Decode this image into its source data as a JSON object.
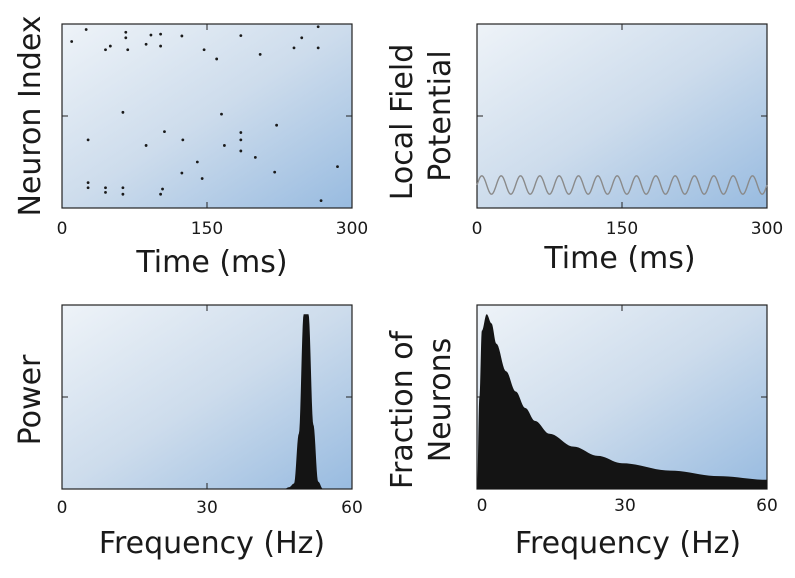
{
  "chart_data": [
    {
      "type": "scatter",
      "name": "raster",
      "title": "",
      "xlabel": "Time (ms)",
      "ylabel": "Neuron Index",
      "xlim": [
        0,
        300
      ],
      "ylim": [
        0,
        10
      ],
      "xticks": [
        0,
        150,
        300
      ],
      "xtick_labels": [
        "0",
        "150",
        "300"
      ],
      "x": [
        10,
        25,
        27,
        27,
        27,
        45,
        45,
        45,
        50,
        63,
        63,
        63,
        66,
        66,
        68,
        87,
        87,
        92,
        102,
        102,
        102,
        104,
        106,
        124,
        124,
        125,
        140,
        145,
        147,
        160,
        165,
        168,
        185,
        185,
        185,
        185,
        200,
        205,
        220,
        222,
        240,
        248,
        265,
        265,
        268,
        285
      ],
      "y": [
        9.05,
        9.7,
        1.1,
        1.38,
        3.7,
        0.85,
        1.1,
        8.6,
        8.8,
        0.75,
        1.1,
        5.2,
        9.25,
        9.55,
        8.6,
        8.9,
        3.4,
        9.4,
        8.8,
        9.45,
        0.75,
        1.03,
        4.15,
        9.35,
        1.9,
        3.7,
        2.5,
        1.6,
        8.6,
        8.1,
        5.1,
        3.4,
        3.7,
        9.37,
        4.1,
        3.1,
        2.75,
        8.35,
        1.95,
        4.5,
        8.7,
        9.25,
        8.7,
        9.85,
        0.4,
        2.25
      ],
      "orientation_note": "y measured from bottom"
    },
    {
      "type": "line",
      "name": "lfp",
      "title": "",
      "xlabel": "Time (ms)",
      "ylabel": "Local Field Potential",
      "ylabel_lines": [
        "Local Field",
        "Potential"
      ],
      "xlim": [
        0,
        300
      ],
      "ylim": [
        -1,
        1
      ],
      "xticks": [
        0,
        150,
        300
      ],
      "xtick_labels": [
        "0",
        "150",
        "300"
      ],
      "frequency_hz": 50,
      "amplitude": 0.1,
      "offset": -0.75,
      "line_color": "#8a8a8a"
    },
    {
      "type": "area",
      "name": "power",
      "title": "",
      "xlabel": "Frequency (Hz)",
      "ylabel": "Power",
      "xlim": [
        0,
        60
      ],
      "ylim": [
        0,
        1
      ],
      "xticks": [
        0,
        30,
        60
      ],
      "xtick_labels": [
        "0",
        "30",
        "60"
      ],
      "x": [
        46,
        47,
        48,
        49,
        50,
        51,
        52,
        53,
        54
      ],
      "y": [
        0.0,
        0.01,
        0.03,
        0.3,
        0.95,
        0.95,
        0.35,
        0.04,
        0.0
      ],
      "peak_hz": 50,
      "fill_color": "#141414"
    },
    {
      "type": "area",
      "name": "distribution",
      "title": "",
      "xlabel": "Frequency (Hz)",
      "ylabel": "Fraction of Neurons",
      "ylabel_lines": [
        "Fraction of",
        "Neurons"
      ],
      "xlim": [
        0,
        60
      ],
      "ylim": [
        0,
        1
      ],
      "xticks": [
        0,
        30,
        60
      ],
      "xtick_labels": [
        "0",
        "30",
        "60"
      ],
      "x": [
        0,
        0.5,
        1,
        2,
        3,
        4,
        6,
        8,
        10,
        12,
        15,
        20,
        25,
        30,
        40,
        50,
        60
      ],
      "y": [
        0.0,
        0.5,
        0.86,
        0.95,
        0.9,
        0.79,
        0.64,
        0.53,
        0.44,
        0.37,
        0.3,
        0.23,
        0.18,
        0.14,
        0.1,
        0.07,
        0.05
      ],
      "fill_color": "#141414"
    }
  ]
}
